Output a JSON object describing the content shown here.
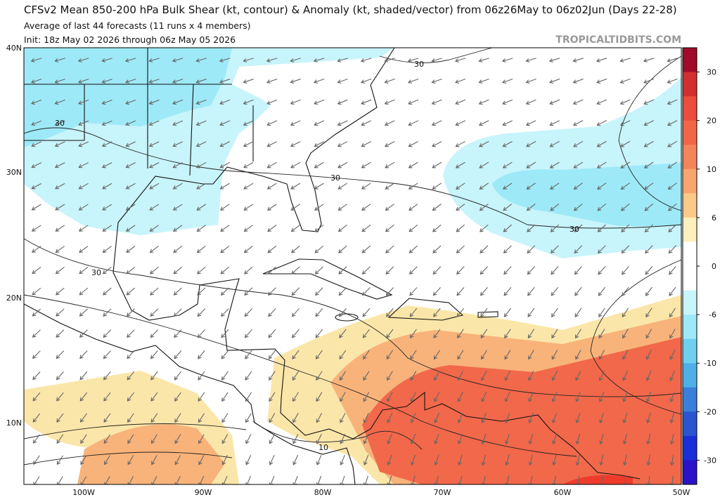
{
  "header": {
    "title": "CFSv2 Mean 850-200 hPa Bulk Shear (kt, contour) & Anomaly (kt, shaded/vector) from 06z26May to 06z02Jun (Days 22-28)",
    "subtitle": "Average of last 44 forecasts (11 runs x 4 members)",
    "init": "Init: 18z May 02 2026 through 06z May 05 2026",
    "watermark": "TROPICALTIDBITS.COM"
  },
  "map": {
    "lat_labels": [
      "40N",
      "30N",
      "20N",
      "10N"
    ],
    "lon_labels": [
      "100W",
      "90W",
      "80W",
      "70W",
      "60W",
      "50W"
    ],
    "contour_labels": [
      "30",
      "30",
      "30",
      "30",
      "30",
      "10"
    ]
  },
  "colorbar": {
    "ticks": [
      30,
      20,
      10,
      6,
      0,
      -6,
      -10,
      -20,
      -30
    ],
    "colors": [
      "#a10a28",
      "#d32f2f",
      "#ec4c3c",
      "#f26648",
      "#f5845a",
      "#f9a66e",
      "#fbc98a",
      "#fdf0bc",
      "#ffffff",
      "#ffffff",
      "#c8f4fb",
      "#9ee9f7",
      "#6fcff0",
      "#4fb0e8",
      "#3a7fd9",
      "#2a55d0",
      "#1a2fd8",
      "#2b12c8"
    ]
  }
}
